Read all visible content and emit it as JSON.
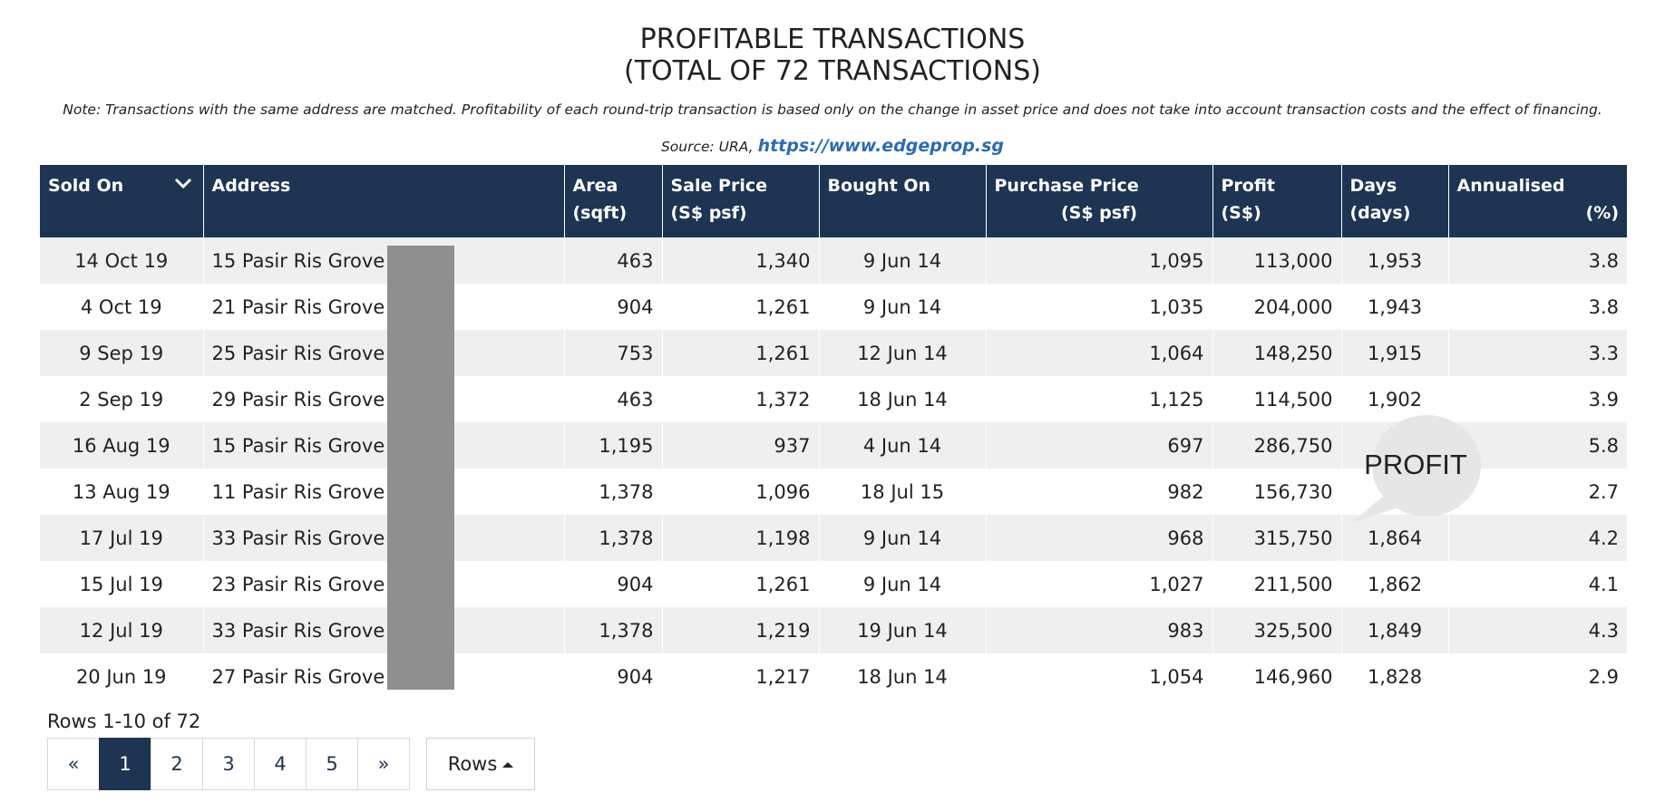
{
  "title": {
    "line1": "PROFITABLE TRANSACTIONS",
    "line2": "(TOTAL OF 72 TRANSACTIONS)"
  },
  "note": "Note: Transactions with the same address are matched. Profitability of each round-trip transaction is based only on the change in asset price and does not take into account transaction costs and the effect of financing.",
  "source": {
    "label": "Source: URA,",
    "link": "https://www.edgeprop.sg"
  },
  "columns": [
    {
      "line1": "Sold On",
      "line2": ""
    },
    {
      "line1": "Address",
      "line2": ""
    },
    {
      "line1": "Area",
      "line2": "(sqft)"
    },
    {
      "line1": "Sale Price",
      "line2": "(S$ psf)"
    },
    {
      "line1": "Bought On",
      "line2": ""
    },
    {
      "line1": "Purchase Price",
      "line2": "(S$ psf)"
    },
    {
      "line1": "Profit",
      "line2": "(S$)"
    },
    {
      "line1": "Days",
      "line2": "(days)"
    },
    {
      "line1": "Annualised",
      "line2": "(%)"
    }
  ],
  "rows": [
    [
      "14 Oct 19",
      "15 Pasir Ris Grove",
      "463",
      "1,340",
      "9 Jun 14",
      "1,095",
      "113,000",
      "1,953",
      "3.8"
    ],
    [
      "4 Oct 19",
      "21 Pasir Ris Grove",
      "904",
      "1,261",
      "9 Jun 14",
      "1,035",
      "204,000",
      "1,943",
      "3.8"
    ],
    [
      "9 Sep 19",
      "25 Pasir Ris Grove",
      "753",
      "1,261",
      "12 Jun 14",
      "1,064",
      "148,250",
      "1,915",
      "3.3"
    ],
    [
      "2 Sep 19",
      "29 Pasir Ris Grove",
      "463",
      "1,372",
      "18 Jun 14",
      "1,125",
      "114,500",
      "1,902",
      "3.9"
    ],
    [
      "16 Aug 19",
      "15 Pasir Ris Grove",
      "1,195",
      "937",
      "4 Jun 14",
      "697",
      "286,750",
      "",
      "5.8"
    ],
    [
      "13 Aug 19",
      "11 Pasir Ris Grove",
      "1,378",
      "1,096",
      "18 Jul 15",
      "982",
      "156,730",
      "",
      "2.7"
    ],
    [
      "17 Jul 19",
      "33 Pasir Ris Grove",
      "1,378",
      "1,198",
      "9 Jun 14",
      "968",
      "315,750",
      "1,864",
      "4.2"
    ],
    [
      "15 Jul 19",
      "23 Pasir Ris Grove",
      "904",
      "1,261",
      "9 Jun 14",
      "1,027",
      "211,500",
      "1,862",
      "4.1"
    ],
    [
      "12 Jul 19",
      "33 Pasir Ris Grove",
      "1,378",
      "1,219",
      "19 Jun 14",
      "983",
      "325,500",
      "1,849",
      "4.3"
    ],
    [
      "20 Jun 19",
      "27 Pasir Ris Grove",
      "904",
      "1,217",
      "18 Jun 14",
      "1,054",
      "146,960",
      "1,828",
      "2.9"
    ]
  ],
  "callout": "PROFIT",
  "pagination": {
    "info": "Rows 1-10 of 72",
    "prev": "«",
    "pages": [
      "1",
      "2",
      "3",
      "4",
      "5"
    ],
    "next": "»",
    "rows_button": "Rows"
  },
  "colors": {
    "header_bg": "#1d3552",
    "row_alt_bg": "#efefef",
    "link": "#2a6db3",
    "redaction": "#8f8f8f",
    "callout_bg": "#e6e6e6"
  }
}
